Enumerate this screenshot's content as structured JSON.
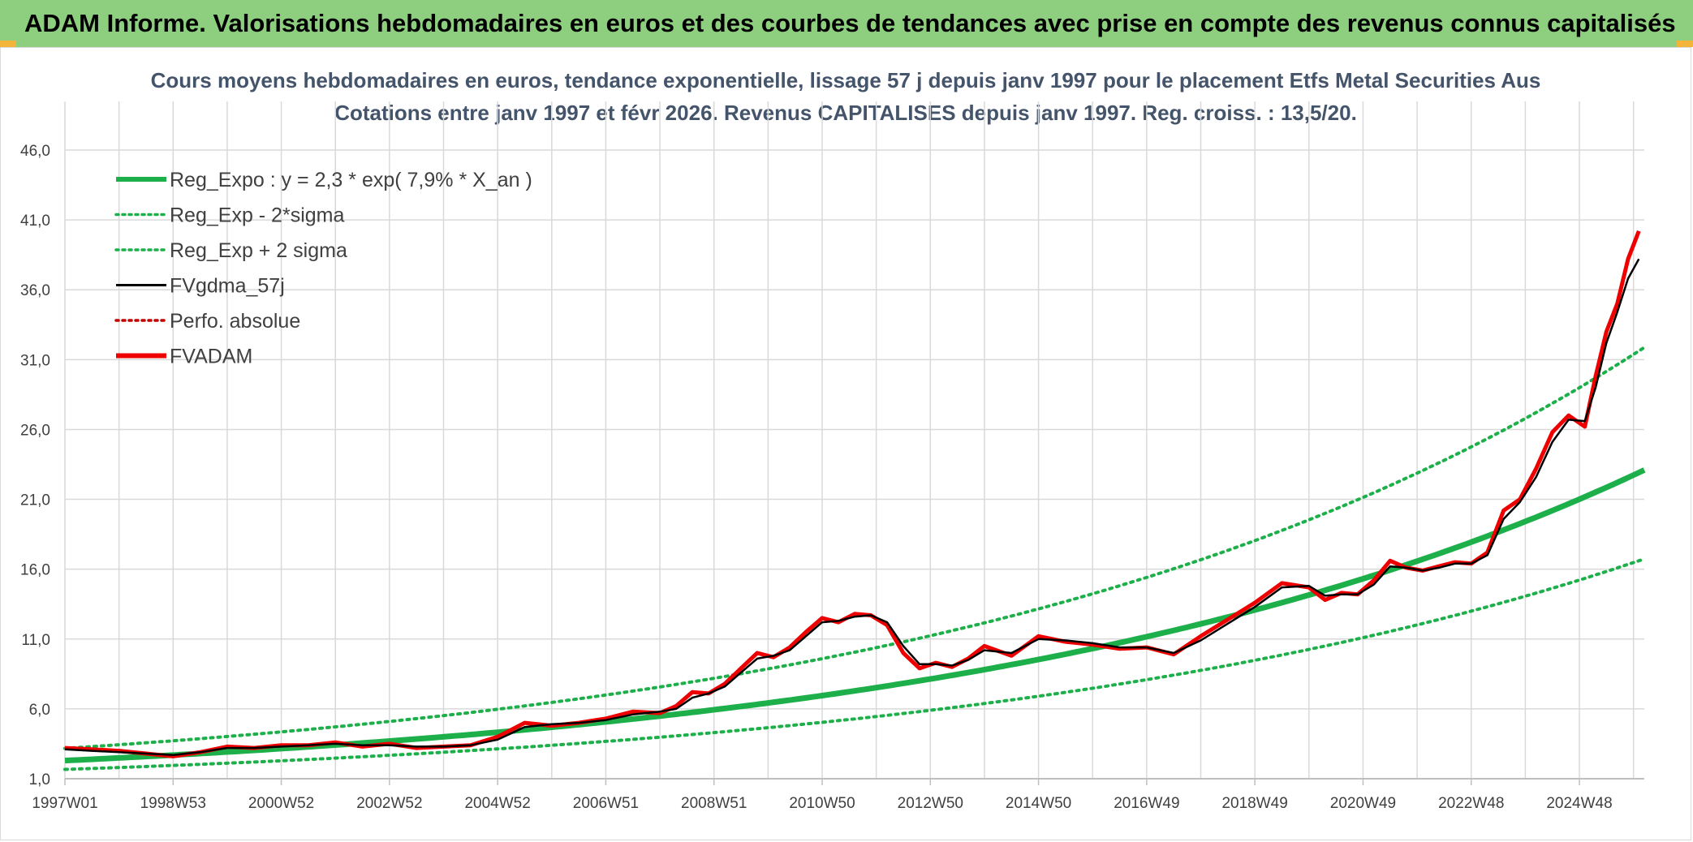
{
  "header": {
    "banner": "ADAM Informe. Valorisations hebdomadaires en euros et des courbes de tendances avec prise en compte des revenus connus capitalisés"
  },
  "colors": {
    "banner_bg": "#8dce7f",
    "regression": "#1db04a",
    "fvgdma": "#000000",
    "fvadam": "#ee0000",
    "perfo": "#c00000",
    "grid": "#d9d9d9"
  },
  "chart_data": {
    "type": "line",
    "title": "Cours moyens hebdomadaires en euros, tendance exponentielle, lissage 57 j depuis janv 1997 pour le placement Etfs Metal Securities Aus",
    "subtitle": "Cotations entre janv 1997 et févr 2026. Revenus CAPITALISES depuis janv 1997. Reg. croiss. : 13,5/20.",
    "xlabel": "",
    "ylabel": "",
    "ylim": [
      1.0,
      46.0
    ],
    "yticks": [
      "46,0",
      "41,0",
      "36,0",
      "31,0",
      "26,0",
      "21,0",
      "16,0",
      "11,0",
      "6,0",
      "1,0"
    ],
    "xticks": [
      "1997W01",
      "1998W53",
      "2000W52",
      "2002W52",
      "2004W52",
      "2006W51",
      "2008W51",
      "2010W50",
      "2012W50",
      "2014W50",
      "2016W49",
      "2018W49",
      "2020W49",
      "2022W48",
      "2024W48"
    ],
    "xrange": [
      1997.0,
      2026.2
    ],
    "grid": true,
    "legend_position": "top-left",
    "legend": [
      {
        "name": "Reg_Expo : y = 2,3 * exp( 7,9% *  X_an )",
        "style": "thick-solid",
        "color": "#1db04a"
      },
      {
        "name": "Reg_Exp - 2*sigma",
        "style": "dotted",
        "color": "#1db04a"
      },
      {
        "name": "Reg_Exp + 2 sigma",
        "style": "dotted",
        "color": "#1db04a"
      },
      {
        "name": "FVgdma_57j",
        "style": "solid",
        "color": "#000000"
      },
      {
        "name": "Perfo. absolue",
        "style": "dotted",
        "color": "#c00000"
      },
      {
        "name": "FVADAM",
        "style": "thick-solid",
        "color": "#ee0000"
      }
    ],
    "regression": {
      "a": 2.3,
      "rate": 0.079,
      "sigma_factor": 1.38
    },
    "series": [
      {
        "name": "FVADAM",
        "x": [
          1997.0,
          1997.5,
          1998.0,
          1998.5,
          1999.0,
          1999.5,
          2000.0,
          2000.5,
          2001.0,
          2001.5,
          2002.0,
          2002.5,
          2003.0,
          2003.5,
          2004.0,
          2004.5,
          2005.0,
          2005.5,
          2006.0,
          2006.5,
          2007.0,
          2007.5,
          2008.0,
          2008.3,
          2008.6,
          2008.9,
          2009.2,
          2009.5,
          2009.8,
          2010.1,
          2010.4,
          2010.7,
          2011.0,
          2011.3,
          2011.6,
          2011.9,
          2012.2,
          2012.5,
          2012.8,
          2013.1,
          2013.4,
          2013.7,
          2014.0,
          2014.5,
          2015.0,
          2015.5,
          2016.0,
          2016.5,
          2017.0,
          2017.5,
          2018.0,
          2018.5,
          2019.0,
          2019.5,
          2020.0,
          2020.3,
          2020.6,
          2020.9,
          2021.2,
          2021.5,
          2021.8,
          2022.1,
          2022.4,
          2022.7,
          2023.0,
          2023.3,
          2023.6,
          2023.9,
          2024.2,
          2024.5,
          2024.8,
          2025.1,
          2025.3,
          2025.5,
          2025.7,
          2025.9,
          2026.1
        ],
        "values": [
          3.2,
          3.1,
          3.0,
          2.8,
          2.6,
          2.9,
          3.3,
          3.2,
          3.4,
          3.4,
          3.6,
          3.3,
          3.5,
          3.2,
          3.3,
          3.4,
          4.0,
          5.0,
          4.8,
          5.0,
          5.3,
          5.8,
          5.7,
          6.2,
          7.2,
          7.1,
          7.8,
          8.9,
          10.0,
          9.7,
          10.4,
          11.5,
          12.5,
          12.2,
          12.8,
          12.7,
          12.0,
          10.0,
          8.9,
          9.3,
          9.0,
          9.6,
          10.5,
          9.8,
          11.2,
          10.8,
          10.6,
          10.3,
          10.4,
          9.9,
          11.2,
          12.4,
          13.6,
          15.0,
          14.7,
          13.8,
          14.3,
          14.2,
          15.2,
          16.6,
          16.1,
          15.9,
          16.2,
          16.5,
          16.4,
          17.2,
          20.2,
          21.0,
          23.2,
          25.8,
          27.0,
          26.2,
          29.8,
          33.0,
          35.0,
          38.2,
          40.2
        ]
      },
      {
        "name": "FVgdma_57j",
        "x": [
          1997.0,
          1997.5,
          1998.0,
          1998.5,
          1999.0,
          1999.5,
          2000.0,
          2000.5,
          2001.0,
          2001.5,
          2002.0,
          2002.5,
          2003.0,
          2003.5,
          2004.0,
          2004.5,
          2005.0,
          2005.5,
          2006.0,
          2006.5,
          2007.0,
          2007.5,
          2008.0,
          2008.3,
          2008.6,
          2008.9,
          2009.2,
          2009.5,
          2009.8,
          2010.1,
          2010.4,
          2010.7,
          2011.0,
          2011.3,
          2011.6,
          2011.9,
          2012.2,
          2012.5,
          2012.8,
          2013.1,
          2013.4,
          2013.7,
          2014.0,
          2014.5,
          2015.0,
          2015.5,
          2016.0,
          2016.5,
          2017.0,
          2017.5,
          2018.0,
          2018.5,
          2019.0,
          2019.5,
          2020.0,
          2020.3,
          2020.6,
          2020.9,
          2021.2,
          2021.5,
          2021.8,
          2022.1,
          2022.4,
          2022.7,
          2023.0,
          2023.3,
          2023.6,
          2023.9,
          2024.2,
          2024.5,
          2024.8,
          2025.1,
          2025.3,
          2025.5,
          2025.7,
          2025.9,
          2026.1
        ],
        "values": [
          3.1,
          3.0,
          2.9,
          2.8,
          2.7,
          2.9,
          3.2,
          3.2,
          3.3,
          3.4,
          3.5,
          3.4,
          3.4,
          3.3,
          3.3,
          3.4,
          3.8,
          4.7,
          4.9,
          5.0,
          5.2,
          5.6,
          5.8,
          6.0,
          6.8,
          7.1,
          7.6,
          8.6,
          9.6,
          9.8,
          10.2,
          11.2,
          12.2,
          12.3,
          12.6,
          12.7,
          12.2,
          10.5,
          9.2,
          9.2,
          9.1,
          9.5,
          10.2,
          10.0,
          11.0,
          10.9,
          10.7,
          10.4,
          10.4,
          10.0,
          10.9,
          12.1,
          13.3,
          14.7,
          14.8,
          14.1,
          14.2,
          14.2,
          14.9,
          16.2,
          16.1,
          15.9,
          16.1,
          16.4,
          16.4,
          17.0,
          19.6,
          20.8,
          22.6,
          25.1,
          26.7,
          26.6,
          29.0,
          32.2,
          34.4,
          36.8,
          38.2
        ]
      }
    ]
  }
}
